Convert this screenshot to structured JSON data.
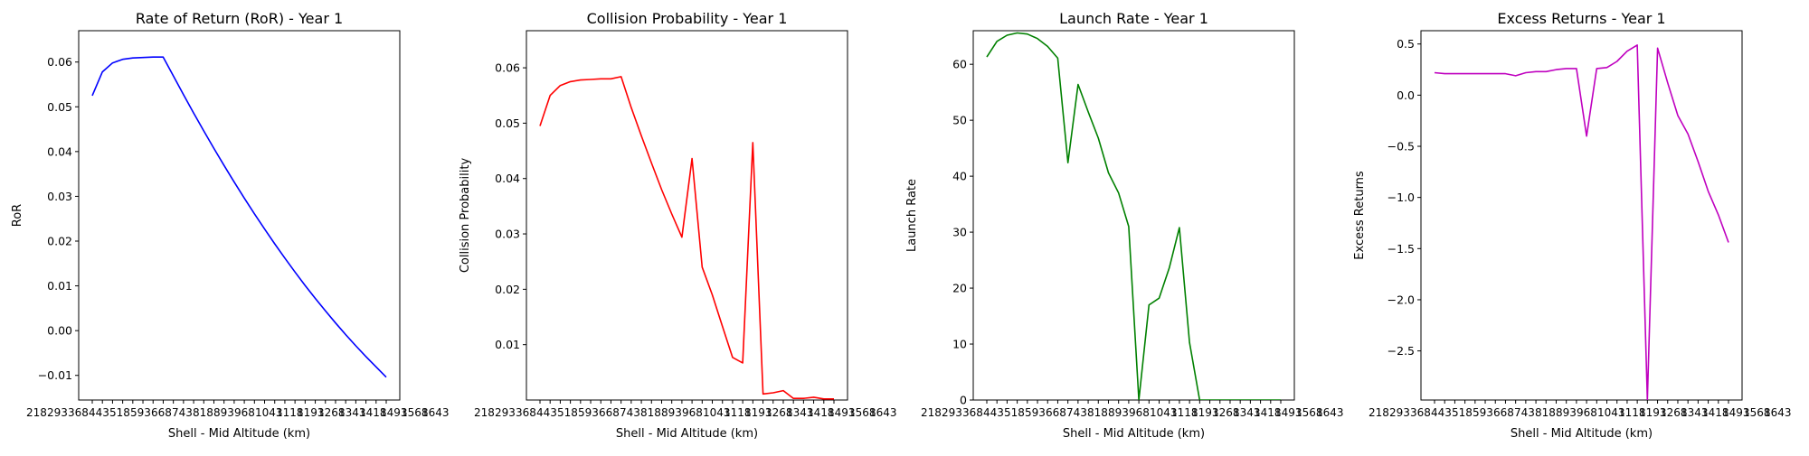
{
  "figure": {
    "x_tick_labels_overlapping": [
      "218",
      "293",
      "368",
      "443",
      "518",
      "593",
      "668",
      "743",
      "818",
      "893",
      "968",
      "1043",
      "1118",
      "1193",
      "1268",
      "1343",
      "1418",
      "1493",
      "1568",
      "1643"
    ]
  },
  "chart_data": [
    {
      "type": "line",
      "title": "Rate of Return (RoR) - Year 1",
      "xlabel": "Shell - Mid Altitude (km)",
      "ylabel": "RoR",
      "color": "#0000ff",
      "ylim": [
        -0.0155,
        0.067
      ],
      "yticks": [
        -0.01,
        0.0,
        0.01,
        0.02,
        0.03,
        0.04,
        0.05,
        0.06
      ],
      "ytick_labels": [
        "−0.01",
        "0.00",
        "0.01",
        "0.02",
        "0.03",
        "0.04",
        "0.05",
        "0.06"
      ],
      "x_count": 30,
      "values": [
        0.0525,
        0.0578,
        0.0598,
        0.0606,
        0.0609,
        0.061,
        0.0611,
        0.0611,
        0.0569,
        0.0527,
        0.0486,
        0.0446,
        0.0407,
        0.0369,
        0.0332,
        0.0296,
        0.0261,
        0.0227,
        0.0194,
        0.0162,
        0.0131,
        0.0101,
        0.0072,
        0.0044,
        0.0017,
        -0.0009,
        -0.0034,
        -0.0058,
        -0.0081,
        -0.0104
      ]
    },
    {
      "type": "line",
      "title": "Collision Probability - Year 1",
      "xlabel": "Shell - Mid Altitude (km)",
      "ylabel": "Collision Probability",
      "color": "#ff0000",
      "ylim": [
        0.0,
        0.0667
      ],
      "yticks": [
        0.01,
        0.02,
        0.03,
        0.04,
        0.05,
        0.06
      ],
      "ytick_labels": [
        "0.01",
        "0.02",
        "0.03",
        "0.04",
        "0.05",
        "0.06"
      ],
      "x_count": 30,
      "values": [
        0.0495,
        0.055,
        0.0568,
        0.0575,
        0.0578,
        0.0579,
        0.058,
        0.058,
        0.0584,
        0.0528,
        0.0477,
        0.0428,
        0.038,
        0.0336,
        0.0294,
        0.0436,
        0.024,
        0.019,
        0.0133,
        0.0077,
        0.0067,
        0.0465,
        0.0011,
        0.0013,
        0.0017,
        0.0003,
        0.0003,
        0.0005,
        0.0002,
        0.0002
      ]
    },
    {
      "type": "line",
      "title": "Launch Rate - Year 1",
      "xlabel": "Shell - Mid Altitude (km)",
      "ylabel": "Launch Rate",
      "color": "#008000",
      "ylim": [
        0,
        66
      ],
      "yticks": [
        0,
        10,
        20,
        30,
        40,
        50,
        60
      ],
      "ytick_labels": [
        "0",
        "10",
        "20",
        "30",
        "40",
        "50",
        "60"
      ],
      "x_count": 30,
      "values": [
        61.3,
        64.1,
        65.2,
        65.6,
        65.4,
        64.6,
        63.2,
        61.1,
        42.4,
        56.4,
        51.5,
        46.8,
        40.6,
        37.0,
        31.0,
        0.0,
        17.0,
        18.2,
        23.6,
        30.8,
        10.3,
        0.0,
        0.0,
        0.0,
        0.0,
        0.0,
        0.0,
        0.0,
        0.0,
        0.0
      ]
    },
    {
      "type": "line",
      "title": "Excess Returns - Year 1",
      "xlabel": "Shell - Mid Altitude (km)",
      "ylabel": "Excess Returns",
      "color": "#bf00bf",
      "ylim": [
        -2.98,
        0.63
      ],
      "yticks": [
        -2.5,
        -2.0,
        -1.5,
        -1.0,
        -0.5,
        0.0,
        0.5
      ],
      "ytick_labels": [
        "−2.5",
        "−2.0",
        "−1.5",
        "−1.0",
        "−0.5",
        "0.0",
        "0.5"
      ],
      "x_count": 30,
      "values": [
        0.22,
        0.21,
        0.21,
        0.21,
        0.21,
        0.21,
        0.21,
        0.21,
        0.19,
        0.22,
        0.23,
        0.23,
        0.25,
        0.26,
        0.26,
        -0.4,
        0.26,
        0.27,
        0.33,
        0.43,
        0.49,
        -2.98,
        0.46,
        0.12,
        -0.2,
        -0.38,
        -0.65,
        -0.94,
        -1.17,
        -1.44
      ]
    }
  ]
}
